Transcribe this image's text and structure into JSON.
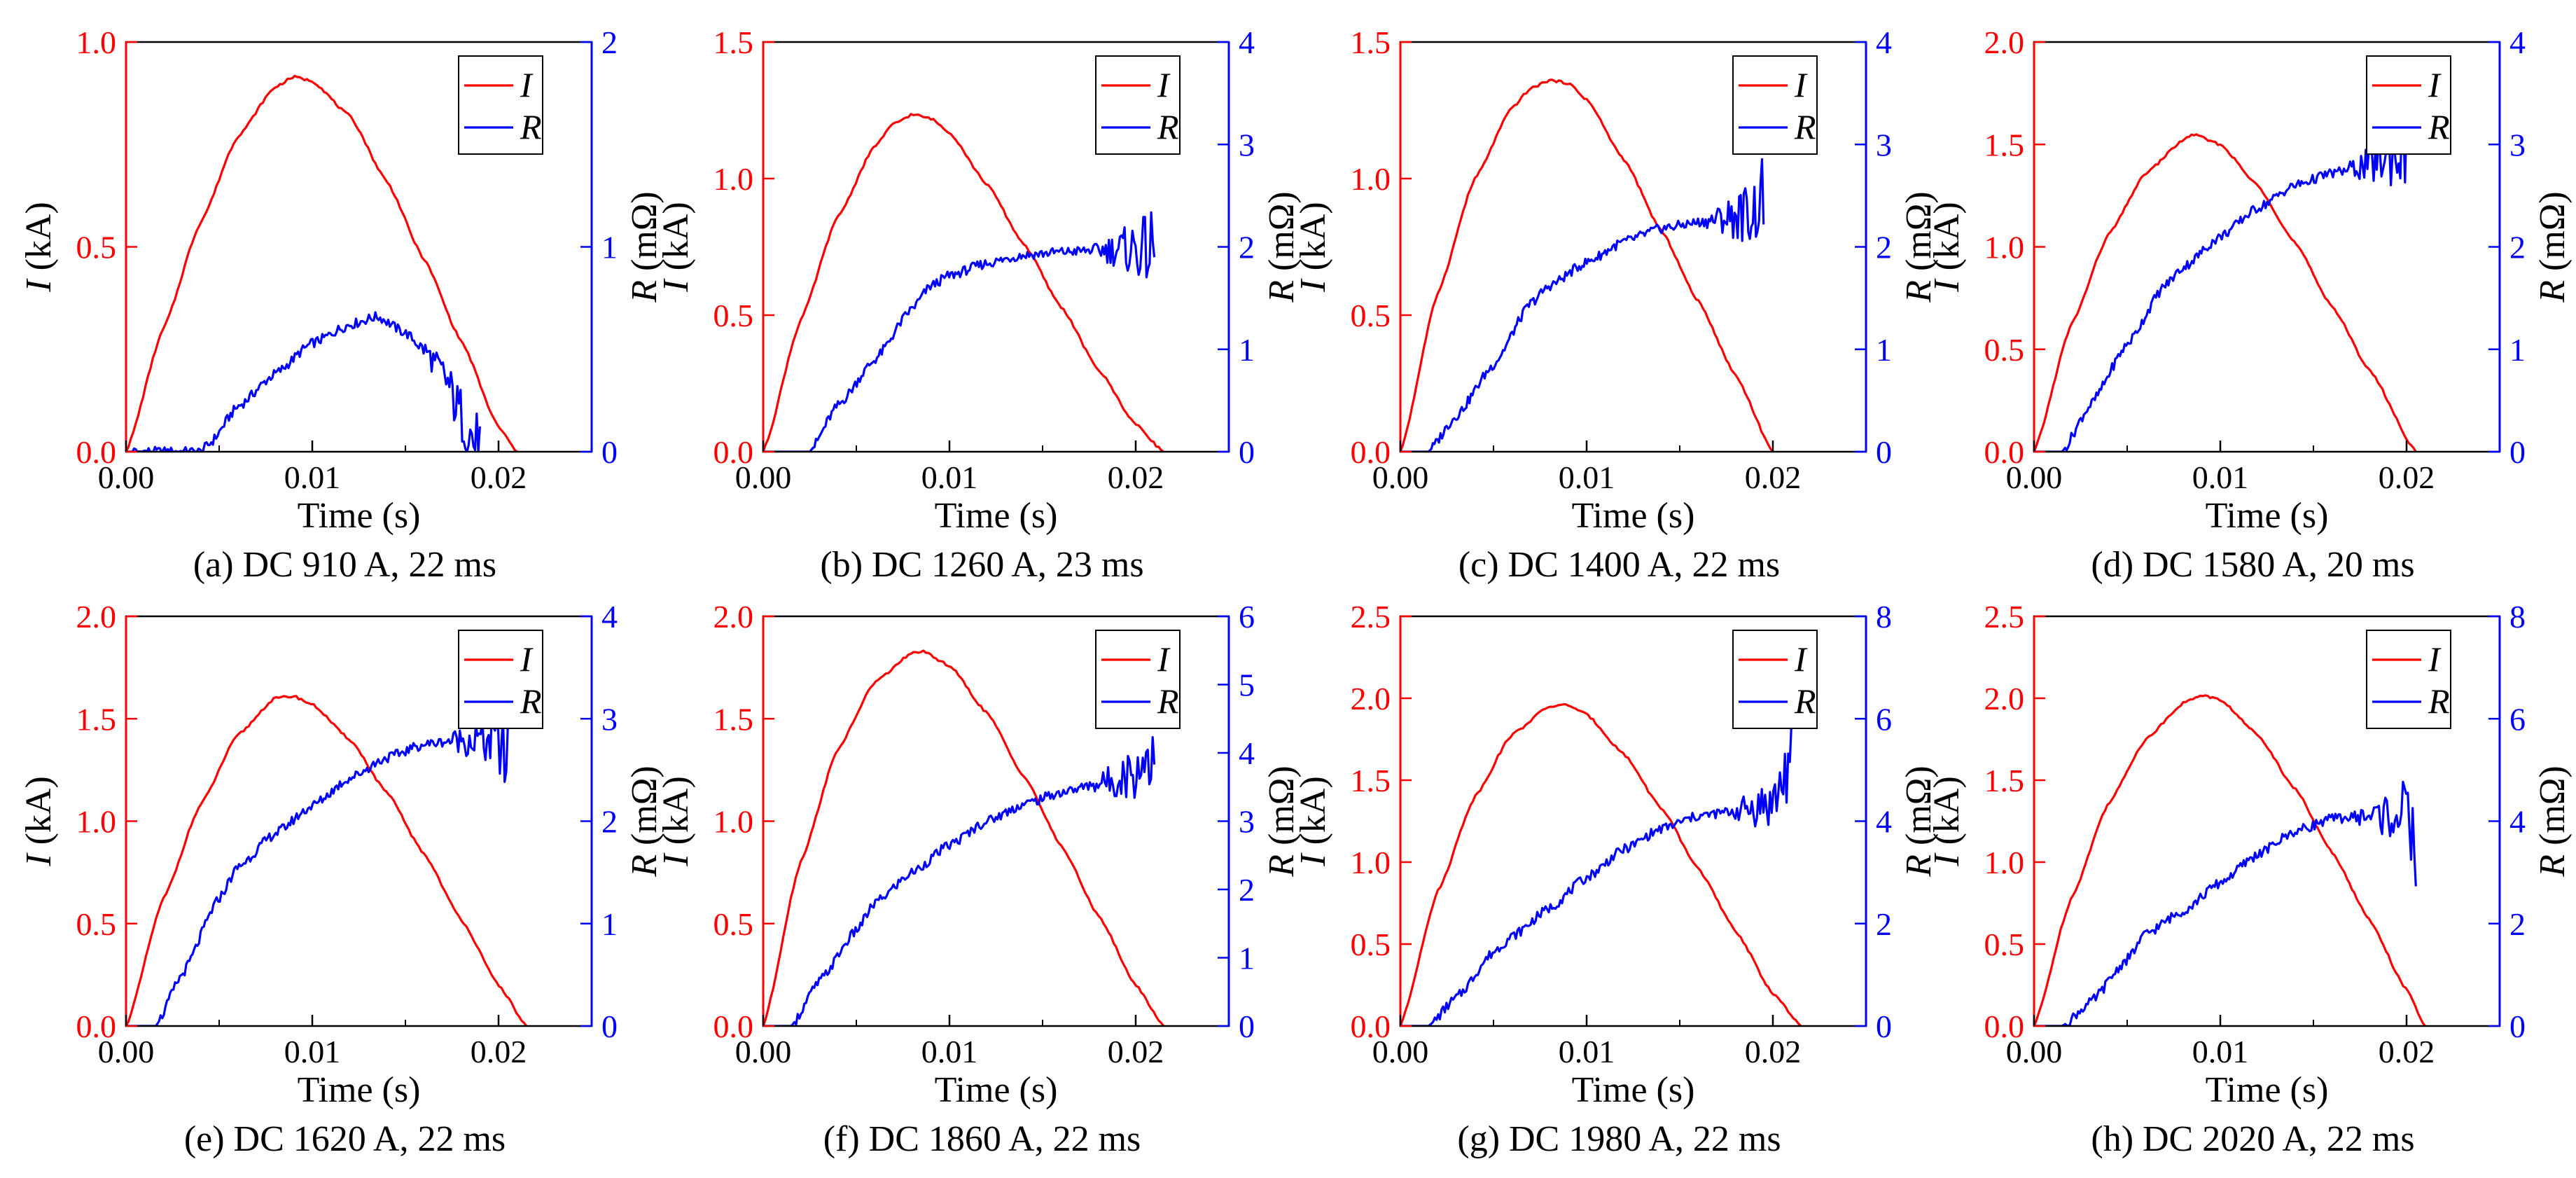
{
  "colors": {
    "current": "#ff0000",
    "resistance": "#0000ff",
    "axis": "#000000"
  },
  "labels": {
    "xlabel": "Time (s)",
    "ylabel_left_symbol": "I",
    "ylabel_left_unit": " (kA)",
    "ylabel_right_symbol": "R",
    "ylabel_right_unit": " (mΩ)",
    "legend_current": "I",
    "legend_resistance": "R"
  },
  "chart_data": [
    {
      "id": "a",
      "caption": "(a) DC 910 A, 22 ms",
      "type": "line",
      "xlim": [
        0,
        0.025
      ],
      "xticks": [
        "0.00",
        "0.01",
        "0.02"
      ],
      "ylim_left": [
        0,
        1.0
      ],
      "yticks_left": [
        "0.0",
        "0.5",
        "1.0"
      ],
      "ylim_right": [
        0,
        2
      ],
      "yticks_right": [
        "0",
        "1",
        "2"
      ],
      "series": [
        {
          "name": "I",
          "axis": "left",
          "units": "kA",
          "x": [
            0,
            0.002,
            0.004,
            0.006,
            0.008,
            0.009,
            0.01,
            0.012,
            0.014,
            0.016,
            0.018,
            0.02,
            0.021
          ],
          "y": [
            0,
            0.3,
            0.56,
            0.77,
            0.89,
            0.915,
            0.905,
            0.82,
            0.66,
            0.47,
            0.27,
            0.06,
            0
          ]
        },
        {
          "name": "R",
          "axis": "right",
          "units": "mΩ",
          "x": [
            0,
            0.004,
            0.0045,
            0.006,
            0.008,
            0.01,
            0.012,
            0.0135,
            0.015,
            0.016,
            0.017,
            0.018,
            0.019
          ],
          "y": [
            0,
            0,
            0.04,
            0.22,
            0.38,
            0.53,
            0.62,
            0.66,
            0.58,
            0.5,
            0.38,
            0.18,
            0
          ]
        }
      ]
    },
    {
      "id": "b",
      "caption": "(b) DC 1260 A, 23 ms",
      "type": "line",
      "xlim": [
        0,
        0.025
      ],
      "xticks": [
        "0.00",
        "0.01",
        "0.02"
      ],
      "ylim_left": [
        0,
        1.5
      ],
      "yticks_left": [
        "0.0",
        "0.5",
        "1.0",
        "1.5"
      ],
      "ylim_right": [
        0,
        4
      ],
      "yticks_right": [
        "0",
        "1",
        "2",
        "3",
        "4"
      ],
      "series": [
        {
          "name": "I",
          "axis": "left",
          "units": "kA",
          "x": [
            0,
            0.002,
            0.004,
            0.006,
            0.007,
            0.008,
            0.009,
            0.01,
            0.012,
            0.014,
            0.016,
            0.018,
            0.02,
            0.0215
          ],
          "y": [
            0,
            0.48,
            0.86,
            1.12,
            1.2,
            1.235,
            1.22,
            1.17,
            0.98,
            0.76,
            0.53,
            0.3,
            0.1,
            0
          ]
        },
        {
          "name": "R",
          "axis": "right",
          "units": "mΩ",
          "x": [
            0.0025,
            0.004,
            0.006,
            0.008,
            0.009,
            0.01,
            0.012,
            0.014,
            0.016,
            0.018,
            0.02,
            0.021
          ],
          "y": [
            0,
            0.45,
            0.9,
            1.4,
            1.62,
            1.72,
            1.84,
            1.92,
            1.95,
            1.97,
            1.98,
            1.97
          ]
        }
      ]
    },
    {
      "id": "c",
      "caption": "(c) DC 1400 A, 22 ms",
      "type": "line",
      "xlim": [
        0,
        0.025
      ],
      "xticks": [
        "0.00",
        "0.01",
        "0.02"
      ],
      "ylim_left": [
        0,
        1.5
      ],
      "yticks_left": [
        "0.0",
        "0.5",
        "1.0",
        "1.5"
      ],
      "ylim_right": [
        0,
        4
      ],
      "yticks_right": [
        "0",
        "1",
        "2",
        "3",
        "4"
      ],
      "series": [
        {
          "name": "I",
          "axis": "left",
          "units": "kA",
          "x": [
            0,
            0.002,
            0.004,
            0.006,
            0.007,
            0.008,
            0.009,
            0.01,
            0.012,
            0.014,
            0.016,
            0.018,
            0.02
          ],
          "y": [
            0,
            0.58,
            1.0,
            1.26,
            1.33,
            1.36,
            1.35,
            1.29,
            1.07,
            0.81,
            0.55,
            0.28,
            0
          ]
        },
        {
          "name": "R",
          "axis": "right",
          "units": "mΩ",
          "x": [
            0.0015,
            0.003,
            0.005,
            0.007,
            0.008,
            0.01,
            0.012,
            0.014,
            0.016,
            0.018,
            0.019,
            0.0195
          ],
          "y": [
            0,
            0.35,
            0.85,
            1.45,
            1.62,
            1.85,
            2.05,
            2.18,
            2.24,
            2.3,
            2.35,
            2.5
          ]
        }
      ]
    },
    {
      "id": "d",
      "caption": "(d) DC 1580 A, 20 ms",
      "type": "line",
      "xlim": [
        0,
        0.025
      ],
      "xticks": [
        "0.00",
        "0.01",
        "0.02"
      ],
      "ylim_left": [
        0,
        2.0
      ],
      "yticks_left": [
        "0.0",
        "0.5",
        "1.0",
        "1.5",
        "2.0"
      ],
      "ylim_right": [
        0,
        4
      ],
      "yticks_right": [
        "0",
        "1",
        "2",
        "3",
        "4"
      ],
      "series": [
        {
          "name": "I",
          "axis": "left",
          "units": "kA",
          "x": [
            0,
            0.002,
            0.004,
            0.006,
            0.008,
            0.0085,
            0.01,
            0.012,
            0.014,
            0.016,
            0.018,
            0.0205
          ],
          "y": [
            0,
            0.62,
            1.06,
            1.36,
            1.52,
            1.55,
            1.5,
            1.3,
            1.02,
            0.71,
            0.4,
            0
          ]
        },
        {
          "name": "R",
          "axis": "right",
          "units": "mΩ",
          "x": [
            0.0015,
            0.003,
            0.005,
            0.007,
            0.008,
            0.01,
            0.012,
            0.014,
            0.016,
            0.018,
            0.02
          ],
          "y": [
            0,
            0.45,
            1.05,
            1.62,
            1.8,
            2.1,
            2.38,
            2.6,
            2.72,
            2.8,
            2.95
          ]
        }
      ]
    },
    {
      "id": "e",
      "caption": "(e) DC 1620 A, 22 ms",
      "type": "line",
      "xlim": [
        0,
        0.025
      ],
      "xticks": [
        "0.00",
        "0.01",
        "0.02"
      ],
      "ylim_left": [
        0,
        2.0
      ],
      "yticks_left": [
        "0.0",
        "0.5",
        "1.0",
        "1.5",
        "2.0"
      ],
      "ylim_right": [
        0,
        4
      ],
      "yticks_right": [
        "0",
        "1",
        "2",
        "3",
        "4"
      ],
      "series": [
        {
          "name": "I",
          "axis": "left",
          "units": "kA",
          "x": [
            0,
            0.002,
            0.004,
            0.006,
            0.008,
            0.009,
            0.01,
            0.012,
            0.014,
            0.016,
            0.018,
            0.02,
            0.0215
          ],
          "y": [
            0,
            0.62,
            1.08,
            1.42,
            1.6,
            1.61,
            1.57,
            1.4,
            1.14,
            0.84,
            0.52,
            0.2,
            0
          ]
        },
        {
          "name": "R",
          "axis": "right",
          "units": "mΩ",
          "x": [
            0.0016,
            0.003,
            0.005,
            0.006,
            0.008,
            0.01,
            0.012,
            0.014,
            0.016,
            0.018,
            0.02,
            0.0205
          ],
          "y": [
            0,
            0.5,
            1.25,
            1.55,
            1.88,
            2.15,
            2.42,
            2.62,
            2.75,
            2.8,
            2.78,
            2.55
          ]
        }
      ]
    },
    {
      "id": "f",
      "caption": "(f) DC 1860 A, 22 ms",
      "type": "line",
      "xlim": [
        0,
        0.025
      ],
      "xticks": [
        "0.00",
        "0.01",
        "0.02"
      ],
      "ylim_left": [
        0,
        2.0
      ],
      "yticks_left": [
        "0.0",
        "0.5",
        "1.0",
        "1.5",
        "2.0"
      ],
      "ylim_right": [
        0,
        6
      ],
      "yticks_right": [
        "0",
        "1",
        "2",
        "3",
        "4",
        "5",
        "6"
      ],
      "series": [
        {
          "name": "I",
          "axis": "left",
          "units": "kA",
          "x": [
            0,
            0.002,
            0.004,
            0.006,
            0.008,
            0.0085,
            0.01,
            0.012,
            0.014,
            0.016,
            0.018,
            0.02,
            0.0215
          ],
          "y": [
            0,
            0.8,
            1.35,
            1.68,
            1.82,
            1.83,
            1.76,
            1.53,
            1.22,
            0.88,
            0.54,
            0.2,
            0
          ]
        },
        {
          "name": "R",
          "axis": "right",
          "units": "mΩ",
          "x": [
            0.0015,
            0.003,
            0.005,
            0.006,
            0.008,
            0.01,
            0.012,
            0.014,
            0.016,
            0.018,
            0.02,
            0.021
          ],
          "y": [
            0,
            0.65,
            1.4,
            1.8,
            2.25,
            2.65,
            3.0,
            3.25,
            3.42,
            3.55,
            3.72,
            4.1
          ]
        }
      ]
    },
    {
      "id": "g",
      "caption": "(g) DC 1980 A, 22 ms",
      "type": "line",
      "xlim": [
        0,
        0.025
      ],
      "xticks": [
        "0.00",
        "0.01",
        "0.02"
      ],
      "ylim_left": [
        0,
        2.5
      ],
      "yticks_left": [
        "0.0",
        "0.5",
        "1.0",
        "1.5",
        "2.0",
        "2.5"
      ],
      "ylim_right": [
        0,
        8
      ],
      "yticks_right": [
        "0",
        "2",
        "4",
        "6",
        "8"
      ],
      "series": [
        {
          "name": "I",
          "axis": "left",
          "units": "kA",
          "x": [
            0,
            0.002,
            0.004,
            0.006,
            0.008,
            0.009,
            0.01,
            0.012,
            0.014,
            0.016,
            0.018,
            0.02,
            0.0215
          ],
          "y": [
            0,
            0.82,
            1.4,
            1.78,
            1.95,
            1.96,
            1.9,
            1.66,
            1.33,
            0.96,
            0.58,
            0.2,
            0
          ]
        },
        {
          "name": "R",
          "axis": "right",
          "units": "mΩ",
          "x": [
            0.0015,
            0.003,
            0.005,
            0.006,
            0.008,
            0.01,
            0.012,
            0.014,
            0.016,
            0.018,
            0.02,
            0.021
          ],
          "y": [
            0,
            0.55,
            1.45,
            1.75,
            2.3,
            2.9,
            3.45,
            3.85,
            4.1,
            4.2,
            4.35,
            5.2
          ]
        }
      ]
    },
    {
      "id": "h",
      "caption": "(h) DC 2020 A, 22 ms",
      "type": "line",
      "xlim": [
        0,
        0.025
      ],
      "xticks": [
        "0.00",
        "0.01",
        "0.02"
      ],
      "ylim_left": [
        0,
        2.5
      ],
      "yticks_left": [
        "0.0",
        "0.5",
        "1.0",
        "1.5",
        "2.0",
        "2.5"
      ],
      "ylim_right": [
        0,
        8
      ],
      "yticks_right": [
        "0",
        "2",
        "4",
        "6",
        "8"
      ],
      "series": [
        {
          "name": "I",
          "axis": "left",
          "units": "kA",
          "x": [
            0,
            0.002,
            0.004,
            0.006,
            0.008,
            0.009,
            0.01,
            0.012,
            0.014,
            0.016,
            0.018,
            0.02,
            0.021
          ],
          "y": [
            0,
            0.78,
            1.36,
            1.75,
            1.97,
            2.02,
            1.99,
            1.78,
            1.45,
            1.06,
            0.65,
            0.22,
            0
          ]
        },
        {
          "name": "R",
          "axis": "right",
          "units": "mΩ",
          "x": [
            0.0015,
            0.003,
            0.005,
            0.006,
            0.008,
            0.01,
            0.012,
            0.014,
            0.016,
            0.018,
            0.02,
            0.0205
          ],
          "y": [
            0,
            0.45,
            1.3,
            1.8,
            2.25,
            2.8,
            3.35,
            3.8,
            4.05,
            4.1,
            4.15,
            3.4
          ]
        }
      ]
    }
  ]
}
